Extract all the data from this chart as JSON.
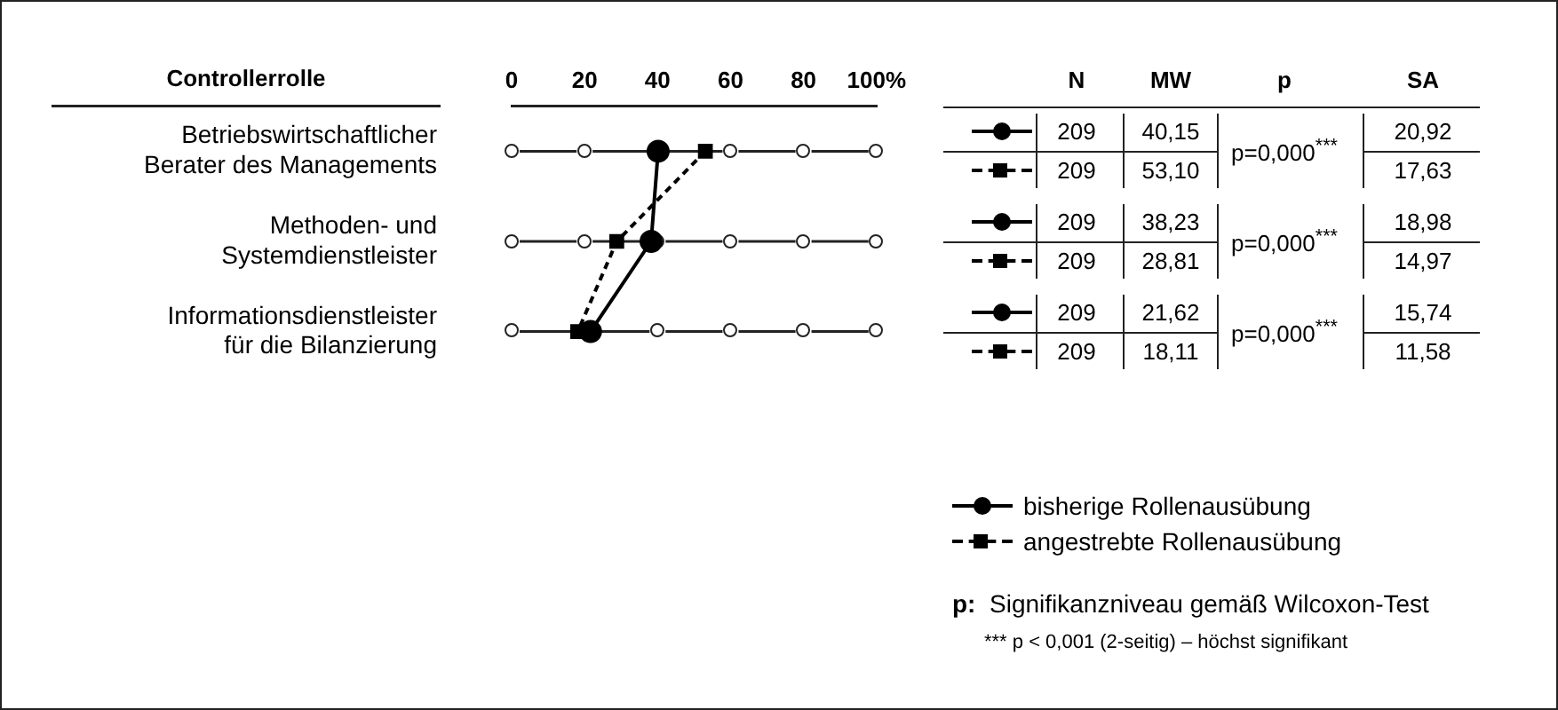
{
  "chart_data": {
    "type": "line",
    "orientation": "horizontal",
    "ylabel": "Controllerrolle",
    "categories": [
      "Betriebswirtschaftlicher Berater des Managements",
      "Methoden- und Systemdienstleister",
      "Informationsdienstleister für die Bilanzierung"
    ],
    "xlim": [
      0,
      100
    ],
    "xticks": [
      0,
      20,
      40,
      60,
      80,
      {
        "value": 100,
        "label": "100%"
      }
    ],
    "grid": "y",
    "legend": "bottom right",
    "series": [
      {
        "name": "bisherige Rollenausübung",
        "color": "#000000",
        "marker": "circle",
        "line_style": "solid",
        "values": [
          40.15,
          38.23,
          21.62
        ]
      },
      {
        "name": "angestrebte Rollenausübung",
        "color": "#000000",
        "marker": "square",
        "line_style": "dashed",
        "values": [
          53.1,
          28.81,
          18.11
        ]
      }
    ],
    "annotations": [
      "N",
      "MW",
      "p",
      "SA",
      "209",
      "209",
      "40,15",
      "53,10",
      "p=0,000$^{***}$",
      "20,92",
      "17,63",
      "209",
      "209",
      "38,23",
      "28,81",
      "p=0,000$^{***}$",
      "18,98",
      "14,97",
      "209",
      "209",
      "21,62",
      "18,11",
      "p=0,000$^{***}$",
      "15,74",
      "11,58",
      "p: Signifikanzniveau gemäß Wilcoxon-Test",
      "*** p < 0,001 (2-seitig) – höchst signifikant"
    ]
  }
}
